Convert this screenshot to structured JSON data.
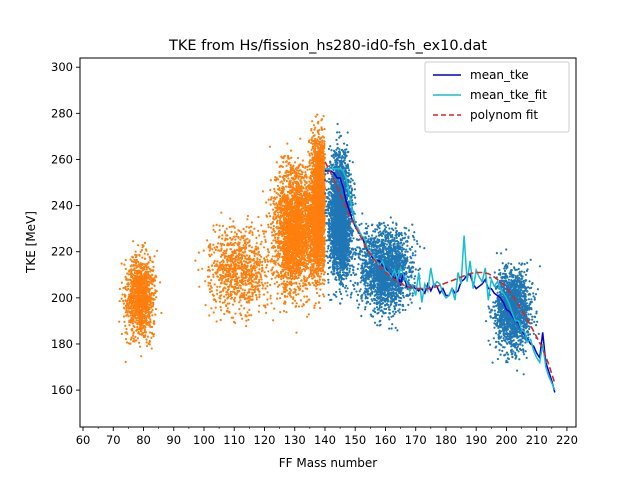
{
  "chart_data": {
    "type": "scatter",
    "title": "TKE from  Hs/fission_hs280-id0-fsh_ex10.dat",
    "xlabel": "FF Mass number",
    "ylabel": "TKE [MeV]",
    "xlim": [
      59,
      223
    ],
    "ylim": [
      144,
      304
    ],
    "xticks": [
      60,
      70,
      80,
      90,
      100,
      110,
      120,
      130,
      140,
      150,
      160,
      170,
      180,
      190,
      200,
      210,
      220
    ],
    "yticks": [
      160,
      180,
      200,
      220,
      240,
      260,
      280,
      300
    ],
    "grid": false,
    "legend": {
      "placement": "top-right",
      "entries": [
        {
          "label": "mean_tke",
          "color": "#0000cc",
          "style": "solid"
        },
        {
          "label": "mean_tke_fit",
          "color": "#17becf",
          "style": "solid"
        },
        {
          "label": "polynom fit",
          "color": "#d62728",
          "style": "dashed"
        }
      ]
    },
    "scatter_series": [
      {
        "color": "#ff7f0e",
        "clusters": [
          {
            "x_center": 79,
            "x_spread": 4,
            "y_center": 200,
            "y_spread": 14
          },
          {
            "x_center": 112,
            "x_spread": 9,
            "y_center": 212,
            "y_spread": 16
          },
          {
            "x_center": 130,
            "x_spread": 6,
            "y_center": 230,
            "y_spread": 22
          },
          {
            "x_center": 138,
            "x_spread": 2.2,
            "y_center": 240,
            "y_spread": 24
          }
        ]
      },
      {
        "color": "#1f77b4",
        "clusters": [
          {
            "x_center": 145,
            "x_spread": 3,
            "y_center": 235,
            "y_spread": 22
          },
          {
            "x_center": 160,
            "x_spread": 7,
            "y_center": 212,
            "y_spread": 14
          },
          {
            "x_center": 202,
            "x_spread": 5,
            "y_center": 195,
            "y_spread": 14
          }
        ]
      }
    ],
    "lines": [
      {
        "name": "mean_tke",
        "color": "#0000cc",
        "style": "solid",
        "x": [
          140,
          141,
          142,
          143,
          144,
          145,
          146,
          147,
          148,
          149,
          150,
          151,
          152,
          153,
          154,
          155,
          156,
          157,
          158,
          159,
          160,
          161,
          162,
          163,
          164,
          165,
          166,
          167,
          168,
          169,
          170,
          171,
          172,
          173,
          174,
          175,
          176,
          177,
          178,
          179,
          180,
          181,
          182,
          183,
          184,
          185,
          186,
          187,
          188,
          189,
          190,
          191,
          192,
          193,
          194,
          195,
          196,
          197,
          198,
          199,
          200,
          201,
          202,
          203,
          204,
          205,
          206,
          207,
          208,
          209,
          210,
          211,
          212,
          213,
          214,
          215,
          216
        ],
        "y": [
          255,
          255,
          255,
          254,
          252,
          252,
          248,
          242,
          238,
          234,
          231,
          229,
          227,
          224,
          221,
          219,
          217,
          216,
          216,
          214,
          213,
          211,
          210,
          208,
          210,
          206,
          211,
          205,
          204,
          205,
          204,
          203,
          204,
          202,
          206,
          203,
          206,
          205,
          202,
          204,
          201,
          201,
          204,
          202,
          203,
          207,
          208,
          210,
          210,
          206,
          204,
          205,
          206,
          208,
          204,
          204,
          202,
          201,
          200,
          198,
          195,
          194,
          192,
          190,
          189,
          186,
          184,
          182,
          180,
          179,
          176,
          174,
          185,
          172,
          168,
          164,
          159
        ]
      },
      {
        "name": "mean_tke_fit",
        "color": "#17becf",
        "style": "solid",
        "x": [
          140,
          141,
          142,
          143,
          144,
          145,
          146,
          147,
          148,
          149,
          150,
          151,
          152,
          153,
          154,
          155,
          156,
          157,
          158,
          159,
          160,
          161,
          162,
          163,
          164,
          165,
          166,
          167,
          168,
          169,
          170,
          171,
          172,
          173,
          174,
          175,
          176,
          177,
          178,
          179,
          180,
          181,
          182,
          183,
          184,
          185,
          186,
          187,
          188,
          189,
          190,
          191,
          192,
          193,
          194,
          195,
          196,
          197,
          198,
          199,
          200,
          201,
          202,
          203,
          204,
          205,
          206,
          207,
          208,
          209,
          210,
          211,
          212,
          213,
          214,
          215,
          216
        ],
        "y": [
          256,
          256,
          256,
          256,
          256,
          256,
          255,
          252,
          245,
          238,
          232,
          230,
          227,
          226,
          222,
          219,
          218,
          216,
          214,
          216,
          212,
          211,
          209,
          212,
          208,
          213,
          210,
          207,
          203,
          205,
          201,
          211,
          198,
          206,
          203,
          213,
          205,
          207,
          206,
          202,
          200,
          201,
          204,
          199,
          211,
          206,
          227,
          207,
          216,
          204,
          212,
          209,
          207,
          213,
          199,
          208,
          205,
          207,
          204,
          202,
          200,
          197,
          193,
          190,
          190,
          186,
          185,
          181,
          182,
          177,
          174,
          172,
          180,
          170,
          166,
          163,
          160
        ]
      },
      {
        "name": "polynom fit",
        "color": "#d62728",
        "style": "dashed",
        "x": [
          140,
          142,
          144,
          146,
          148,
          150,
          152,
          154,
          156,
          158,
          160,
          162,
          164,
          166,
          168,
          170,
          172,
          174,
          176,
          178,
          180,
          182,
          184,
          186,
          188,
          190,
          192,
          194,
          196,
          198,
          200,
          202,
          204,
          206,
          208,
          210,
          212,
          214,
          216
        ],
        "y": [
          259,
          254,
          248,
          242,
          236,
          231,
          226,
          221,
          217,
          214,
          211,
          209,
          207,
          205.5,
          204.5,
          204,
          204,
          204,
          204.5,
          205.5,
          206.5,
          207.5,
          208.5,
          209.5,
          210.5,
          211,
          211,
          210.5,
          209,
          207,
          204.5,
          201,
          197,
          192.5,
          188,
          183,
          178,
          171,
          163
        ]
      }
    ]
  }
}
